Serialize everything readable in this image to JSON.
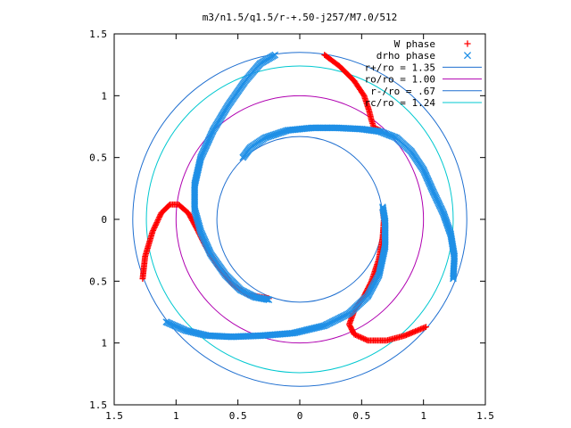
{
  "chart_data": {
    "type": "scatter",
    "title": "m3/n1.5/q1.5/r-+.50-j257/M7.0/512",
    "xlim": [
      -1.5,
      1.5
    ],
    "ylim": [
      -1.5,
      1.5
    ],
    "xticks": [
      -1.5,
      -1,
      -0.5,
      0,
      0.5,
      1,
      1.5
    ],
    "yticks": [
      -1.5,
      -1,
      -0.5,
      0,
      0.5,
      1,
      1.5
    ],
    "xtick_labels": [
      "1.5",
      "1",
      "0.5",
      "0",
      "0.5",
      "1",
      "1.5"
    ],
    "ytick_labels": [
      "1.5",
      "1",
      "0.5",
      "0",
      "0.5",
      "1",
      "1.5"
    ],
    "grid": false,
    "legend_position": "top-right",
    "circles": [
      {
        "label": "r+/ro = 1.35",
        "radius": 1.35,
        "color": "#1f6fd0"
      },
      {
        "label": "ro/ro = 1.00",
        "radius": 1.0,
        "color": "#b000b0"
      },
      {
        "label": "r-/ro = .67",
        "radius": 0.67,
        "color": "#1f6fd0"
      },
      {
        "label": "rc/ro = 1.24",
        "radius": 1.24,
        "color": "#00c8d0"
      }
    ],
    "series": [
      {
        "name": "W phase",
        "marker": "plus",
        "color": "#ff0000",
        "arms": [
          [
            [
              -1.27,
              -0.48
            ],
            [
              -1.25,
              -0.3
            ],
            [
              -1.19,
              -0.1
            ],
            [
              -1.12,
              0.05
            ],
            [
              -1.05,
              0.12
            ],
            [
              -0.98,
              0.12
            ],
            [
              -0.9,
              0.05
            ],
            [
              -0.83,
              -0.08
            ],
            [
              -0.76,
              -0.22
            ],
            [
              -0.66,
              -0.38
            ],
            [
              -0.55,
              -0.52
            ],
            [
              -0.42,
              -0.61
            ],
            [
              -0.25,
              -0.64
            ]
          ],
          [
            [
              0.2,
              1.33
            ],
            [
              0.32,
              1.24
            ],
            [
              0.44,
              1.12
            ],
            [
              0.52,
              1.0
            ],
            [
              0.56,
              0.88
            ],
            [
              0.58,
              0.8
            ],
            [
              0.6,
              0.74
            ],
            [
              0.65,
              0.72
            ]
          ],
          [
            [
              1.02,
              -0.87
            ],
            [
              0.85,
              -0.94
            ],
            [
              0.7,
              -0.98
            ],
            [
              0.55,
              -0.98
            ],
            [
              0.44,
              -0.93
            ],
            [
              0.4,
              -0.85
            ],
            [
              0.44,
              -0.74
            ],
            [
              0.52,
              -0.62
            ],
            [
              0.58,
              -0.5
            ],
            [
              0.64,
              -0.32
            ],
            [
              0.67,
              -0.15
            ],
            [
              0.68,
              0.0
            ],
            [
              0.67,
              0.08
            ]
          ]
        ]
      },
      {
        "name": "drho phase",
        "marker": "cross",
        "color": "#1f8fe6",
        "arms": [
          [
            [
              -0.2,
              1.33
            ],
            [
              -0.32,
              1.26
            ],
            [
              -0.44,
              1.12
            ],
            [
              -0.58,
              0.92
            ],
            [
              -0.7,
              0.72
            ],
            [
              -0.8,
              0.5
            ],
            [
              -0.85,
              0.28
            ],
            [
              -0.85,
              0.08
            ],
            [
              -0.8,
              -0.1
            ],
            [
              -0.72,
              -0.28
            ],
            [
              -0.6,
              -0.45
            ],
            [
              -0.48,
              -0.57
            ],
            [
              -0.36,
              -0.63
            ],
            [
              -0.25,
              -0.65
            ]
          ],
          [
            [
              -1.08,
              -0.83
            ],
            [
              -0.92,
              -0.9
            ],
            [
              -0.75,
              -0.94
            ],
            [
              -0.55,
              -0.95
            ],
            [
              -0.3,
              -0.94
            ],
            [
              -0.05,
              -0.92
            ],
            [
              0.2,
              -0.86
            ],
            [
              0.4,
              -0.76
            ],
            [
              0.55,
              -0.62
            ],
            [
              0.64,
              -0.45
            ],
            [
              0.69,
              -0.22
            ],
            [
              0.69,
              -0.02
            ],
            [
              0.67,
              0.1
            ]
          ],
          [
            [
              -0.46,
              0.5
            ],
            [
              -0.4,
              0.58
            ],
            [
              -0.28,
              0.66
            ],
            [
              -0.1,
              0.72
            ],
            [
              0.1,
              0.74
            ],
            [
              0.3,
              0.74
            ],
            [
              0.5,
              0.73
            ],
            [
              0.65,
              0.71
            ],
            [
              0.78,
              0.66
            ],
            [
              0.9,
              0.55
            ],
            [
              1.0,
              0.4
            ],
            [
              1.08,
              0.22
            ],
            [
              1.16,
              0.05
            ],
            [
              1.22,
              -0.12
            ],
            [
              1.25,
              -0.3
            ],
            [
              1.24,
              -0.48
            ]
          ]
        ]
      }
    ]
  }
}
